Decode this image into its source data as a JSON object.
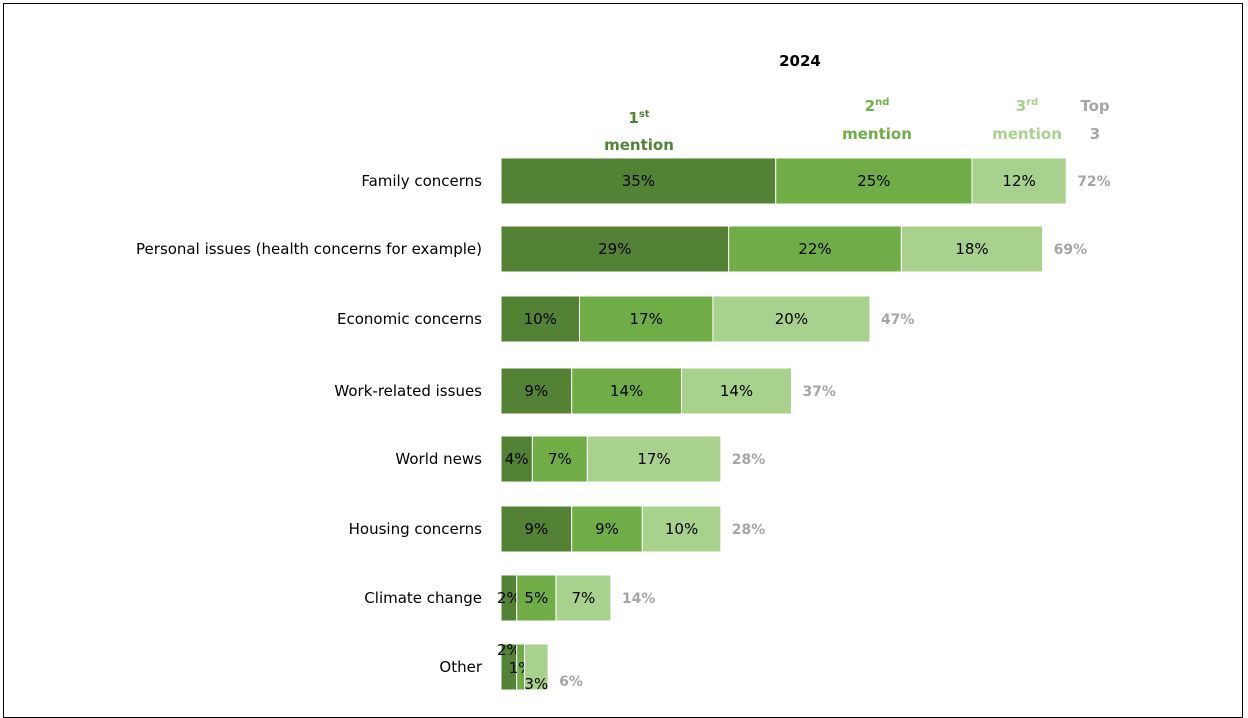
{
  "chart_data": {
    "type": "bar",
    "orientation": "horizontal",
    "stacked": true,
    "title": "2024",
    "column_headers": [
      {
        "base": "1",
        "sup": "st",
        "word": "mention",
        "color": "#548235"
      },
      {
        "base": "2",
        "sup": "nd",
        "word": "mention",
        "color": "#70AD47"
      },
      {
        "base": "3",
        "sup": "rd",
        "word": "mention",
        "color": "#A9D18E"
      },
      {
        "line1": "Top",
        "line2": "3",
        "color": "#A6A6A6"
      }
    ],
    "categories": [
      "Family concerns",
      "Personal issues (health concerns for example)",
      "Economic concerns",
      "Work-related issues",
      "World news",
      "Housing concerns",
      "Climate change",
      "Other"
    ],
    "series": [
      {
        "values": [
          35,
          29,
          10,
          9,
          4,
          9,
          2,
          2
        ],
        "color": "#548235"
      },
      {
        "values": [
          25,
          22,
          17,
          14,
          7,
          9,
          5,
          1
        ],
        "color": "#70AD47"
      },
      {
        "values": [
          12,
          18,
          20,
          14,
          17,
          10,
          7,
          3
        ],
        "color": "#A9D18E"
      }
    ],
    "totals": [
      72,
      69,
      47,
      37,
      28,
      28,
      14,
      6
    ],
    "total_color": "#A6A6A6",
    "value_suffix": "%",
    "xlim": [
      0,
      100
    ],
    "grid": false,
    "legend": "none"
  }
}
